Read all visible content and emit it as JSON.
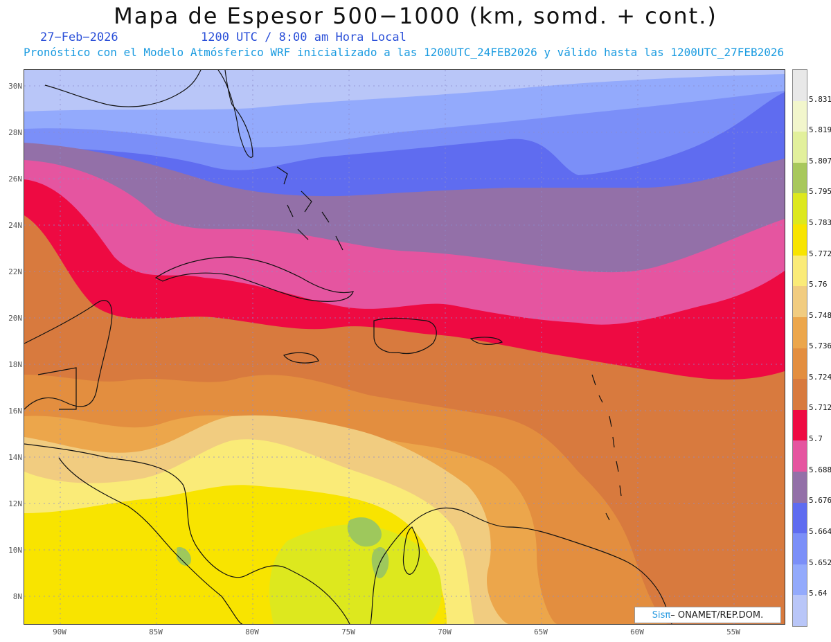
{
  "header": {
    "title": "Mapa de Espesor 500−1000 (km, somd. + cont.)",
    "date": "27−Feb−2026",
    "time": "1200 UTC / 8:00 am Hora Local",
    "subtitle": "Pronóstico con el Modelo Atmósferico WRF inicializado a las 1200UTC_24FEB2026 y válido hasta las  1200UTC_27FEB2026"
  },
  "map": {
    "lat_labels": [
      "30N",
      "28N",
      "26N",
      "24N",
      "22N",
      "20N",
      "18N",
      "16N",
      "14N",
      "12N",
      "10N",
      "8N"
    ],
    "lon_labels": [
      "90W",
      "85W",
      "80W",
      "75W",
      "70W",
      "65W",
      "60W",
      "55W"
    ],
    "colors": {
      "band_5640": "#b9c6f8",
      "band_5652": "#93aafc",
      "band_5664": "#7b8ff8",
      "band_5676": "#5f6cf0",
      "band_5688": "#9370a8",
      "band_5700": "#e555a0",
      "band_5712": "#ee0a42",
      "band_5724": "#d87a3e",
      "band_5736": "#e38e3f",
      "band_5748": "#eca64b",
      "band_5760": "#f1cc80",
      "band_5772": "#faeb78",
      "band_5783": "#f8e400",
      "band_5795": "#dde81e",
      "band_5807": "#9ec85c"
    }
  },
  "colorbar": {
    "labels": [
      "5.831",
      "5.819",
      "5.807",
      "5.795",
      "5.783",
      "5.772",
      "5.76",
      "5.748",
      "5.736",
      "5.724",
      "5.712",
      "5.7",
      "5.688",
      "5.676",
      "5.664",
      "5.652",
      "5.64"
    ],
    "colors": [
      "#e8e8e8",
      "#f2f6cc",
      "#e2f09c",
      "#a8c85c",
      "#dde81e",
      "#f8e400",
      "#faeb78",
      "#f1cc80",
      "#eca64b",
      "#e38e3f",
      "#d87a3e",
      "#ee0a42",
      "#e555a0",
      "#9370a8",
      "#5f6cf0",
      "#7b8ff8",
      "#93aafc",
      "#b9c6f8"
    ]
  },
  "footer": {
    "logo_sis": "Sisπ",
    "logo_org": "– ONAMET/REP.DOM."
  }
}
